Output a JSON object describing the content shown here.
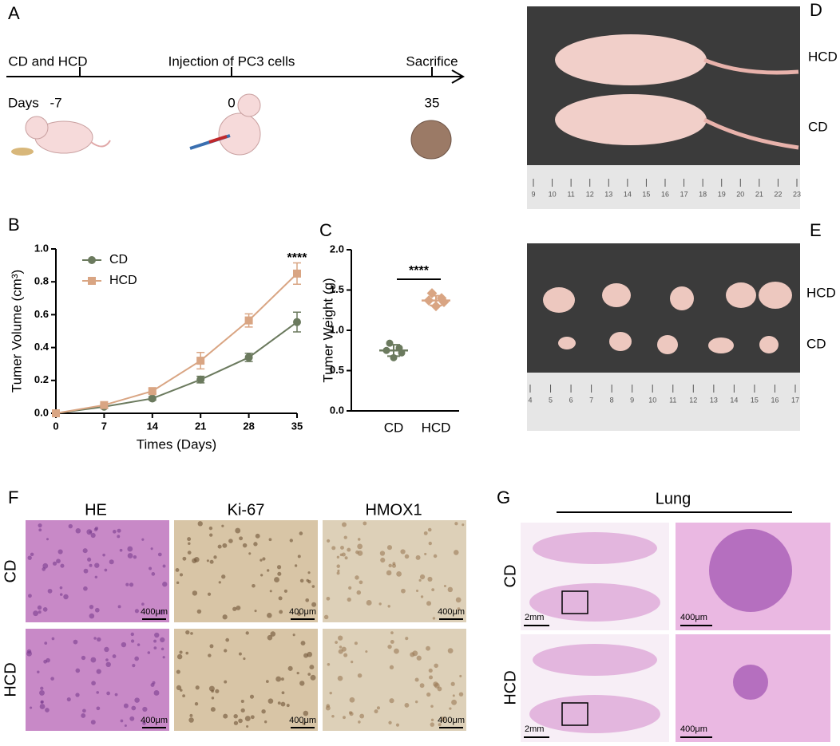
{
  "panel_labels": [
    "A",
    "B",
    "C",
    "D",
    "E",
    "F",
    "G"
  ],
  "timeline": {
    "events": [
      "CD and HCD",
      "Injection of PC3 cells",
      "Sacrifice"
    ],
    "days_label": "Days",
    "days": [
      -7,
      0,
      35
    ]
  },
  "photo_d": {
    "labels": [
      "HCD",
      "CD"
    ],
    "ruler": [
      9,
      10,
      11,
      12,
      13,
      14,
      15,
      16,
      17,
      18,
      19,
      20,
      21,
      22,
      23
    ]
  },
  "photo_e": {
    "labels": [
      "HCD",
      "CD"
    ],
    "ruler": [
      4,
      5,
      6,
      7,
      8,
      9,
      10,
      11,
      12,
      13,
      14,
      15,
      16,
      17
    ]
  },
  "chart_data": [
    {
      "type": "line",
      "x": [
        0,
        7,
        14,
        21,
        28,
        35
      ],
      "xlim": [
        0,
        35
      ],
      "xticks": [
        0,
        7,
        14,
        21,
        28,
        35
      ],
      "ylim": [
        0,
        1
      ],
      "yticks": [
        {
          "value": 0,
          "label": "0.0"
        },
        {
          "value": 0.2,
          "label": "0.2"
        },
        {
          "value": 0.4,
          "label": "0.4"
        },
        {
          "value": 0.6,
          "label": "0.6"
        },
        {
          "value": 0.8,
          "label": "0.8"
        },
        {
          "value": 1,
          "label": "1.0"
        }
      ],
      "xlabel": "Times (Days)",
      "ylabel": "Tumer Volume (cm³)",
      "legend": "upper left",
      "series": [
        {
          "name": "CD",
          "color": "#6b7a5e",
          "marker": "circle",
          "values": [
            0,
            0.04,
            0.09,
            0.205,
            0.34,
            0.555
          ],
          "errors": [
            0.005,
            0.01,
            0.01,
            0.02,
            0.025,
            0.06
          ]
        },
        {
          "name": "HCD",
          "color": "#d9a583",
          "marker": "square",
          "values": [
            0,
            0.05,
            0.135,
            0.32,
            0.565,
            0.85
          ],
          "errors": [
            0.005,
            0.01,
            0.015,
            0.05,
            0.04,
            0.065
          ]
        }
      ],
      "annotation": {
        "text": "****",
        "x": 35
      }
    },
    {
      "type": "dot",
      "categories": [
        "CD",
        "HCD"
      ],
      "colors": [
        "#6b7a5e",
        "#d9a583"
      ],
      "values": [
        [
          0.84,
          0.78,
          0.75,
          0.72,
          0.66
        ],
        [
          1.46,
          1.4,
          1.37,
          1.35,
          1.3
        ]
      ],
      "means": [
        0.75,
        1.37
      ],
      "sd": [
        0.07,
        0.06
      ],
      "ylim": [
        0,
        2
      ],
      "yticks": [
        {
          "value": 0,
          "label": "0.0"
        },
        {
          "value": 0.5,
          "label": "0.5"
        },
        {
          "value": 1,
          "label": "1.0"
        },
        {
          "value": 1.5,
          "label": "1.5"
        },
        {
          "value": 2,
          "label": "2.0"
        }
      ],
      "ylabel": "Tumer Weight (g)",
      "annotation": "****"
    }
  ],
  "histology": {
    "columns": [
      "HE",
      "Ki-67",
      "HMOX1"
    ],
    "rows": [
      "CD",
      "HCD"
    ],
    "scale_bar": "400μm"
  },
  "lung": {
    "title": "Lung",
    "rows": [
      "CD",
      "HCD"
    ],
    "scale_bar_left": "2mm",
    "scale_bar_right": "400μm"
  }
}
